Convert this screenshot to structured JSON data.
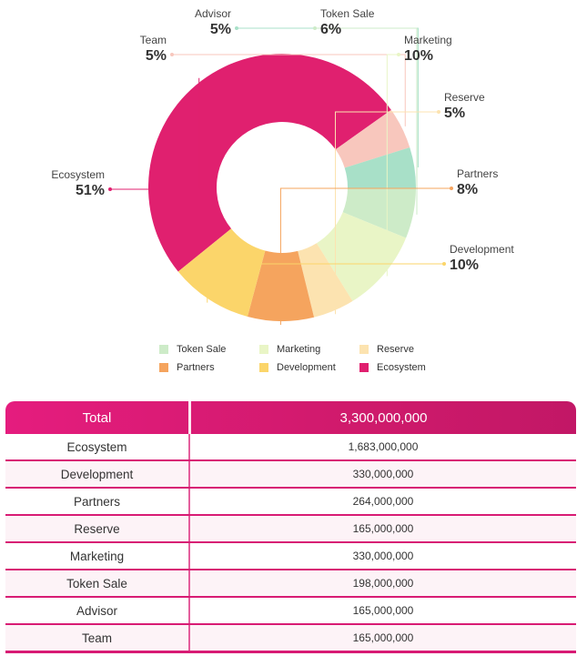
{
  "chart_data": {
    "type": "pie",
    "donut": true,
    "slices": [
      {
        "name": "Ecosystem",
        "pct_label": "51%",
        "value": 51,
        "color": "#e0206f"
      },
      {
        "name": "Team",
        "pct_label": "5%",
        "value": 5,
        "color": "#f8c7bd"
      },
      {
        "name": "Advisor",
        "pct_label": "5%",
        "value": 5,
        "color": "#a8e0c8"
      },
      {
        "name": "Token Sale",
        "pct_label": "6%",
        "value": 6,
        "color": "#cdebc8"
      },
      {
        "name": "Marketing",
        "pct_label": "10%",
        "value": 10,
        "color": "#e9f5c6"
      },
      {
        "name": "Reserve",
        "pct_label": "5%",
        "value": 5,
        "color": "#fce3b0"
      },
      {
        "name": "Partners",
        "pct_label": "8%",
        "value": 8,
        "color": "#f5a45e"
      },
      {
        "name": "Development",
        "pct_label": "10%",
        "value": 10,
        "color": "#fbd56a"
      }
    ],
    "legend": [
      {
        "name": "Token Sale",
        "color": "#cdebc8"
      },
      {
        "name": "Marketing",
        "color": "#e9f5c6"
      },
      {
        "name": "Reserve",
        "color": "#fce3b0"
      },
      {
        "name": "Partners",
        "color": "#f5a45e"
      },
      {
        "name": "Development",
        "color": "#fbd56a"
      },
      {
        "name": "Ecosystem",
        "color": "#e0206f"
      }
    ]
  },
  "table": {
    "header_label": "Total",
    "header_value": "3,300,000,000",
    "rows": [
      {
        "label": "Ecosystem",
        "value": "1,683,000,000"
      },
      {
        "label": "Development",
        "value": "330,000,000"
      },
      {
        "label": "Partners",
        "value": "264,000,000"
      },
      {
        "label": "Reserve",
        "value": "165,000,000"
      },
      {
        "label": "Marketing",
        "value": "330,000,000"
      },
      {
        "label": "Token Sale",
        "value": "198,000,000"
      },
      {
        "label": "Advisor",
        "value": "165,000,000"
      },
      {
        "label": "Team",
        "value": "165,000,000"
      }
    ]
  }
}
